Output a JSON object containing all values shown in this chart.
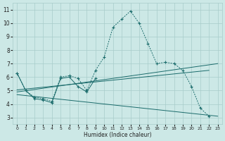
{
  "bg_color": "#cce8e6",
  "grid_color": "#a8ccca",
  "line_color": "#1a6b6b",
  "xlabel": "Humidex (Indice chaleur)",
  "xlim": [
    -0.5,
    23.5
  ],
  "ylim": [
    2.5,
    11.5
  ],
  "xtick_labels": [
    "0",
    "1",
    "2",
    "3",
    "4",
    "5",
    "6",
    "7",
    "8",
    "9",
    "10",
    "11",
    "12",
    "13",
    "14",
    "15",
    "16",
    "17",
    "18",
    "19",
    "20",
    "21",
    "22",
    "23"
  ],
  "xticks": [
    0,
    1,
    2,
    3,
    4,
    5,
    6,
    7,
    8,
    9,
    10,
    11,
    12,
    13,
    14,
    15,
    16,
    17,
    18,
    19,
    20,
    21,
    22,
    23
  ],
  "yticks": [
    3,
    4,
    5,
    6,
    7,
    8,
    9,
    10,
    11
  ],
  "dotted_x": [
    0,
    1,
    2,
    3,
    4,
    5,
    6,
    7,
    8,
    9,
    10,
    11,
    12,
    13,
    14,
    15,
    16,
    17,
    18,
    19,
    20,
    21,
    22
  ],
  "dotted_y": [
    6.3,
    5.0,
    4.5,
    4.4,
    4.2,
    6.0,
    6.1,
    5.9,
    5.0,
    6.5,
    7.5,
    9.7,
    10.3,
    10.9,
    10.0,
    8.5,
    7.0,
    7.1,
    7.0,
    6.5,
    5.3,
    3.7,
    3.1
  ],
  "solid_x": [
    0,
    1,
    2,
    3,
    4,
    5,
    6,
    7,
    8,
    9
  ],
  "solid_y": [
    6.3,
    5.0,
    4.4,
    4.3,
    4.1,
    5.9,
    6.0,
    5.3,
    4.9,
    5.9
  ],
  "trend1_x": [
    0,
    23
  ],
  "trend1_y": [
    4.9,
    7.0
  ],
  "trend2_x": [
    0,
    22
  ],
  "trend2_y": [
    5.05,
    6.5
  ],
  "trend3_x": [
    0,
    23
  ],
  "trend3_y": [
    4.7,
    3.1
  ]
}
